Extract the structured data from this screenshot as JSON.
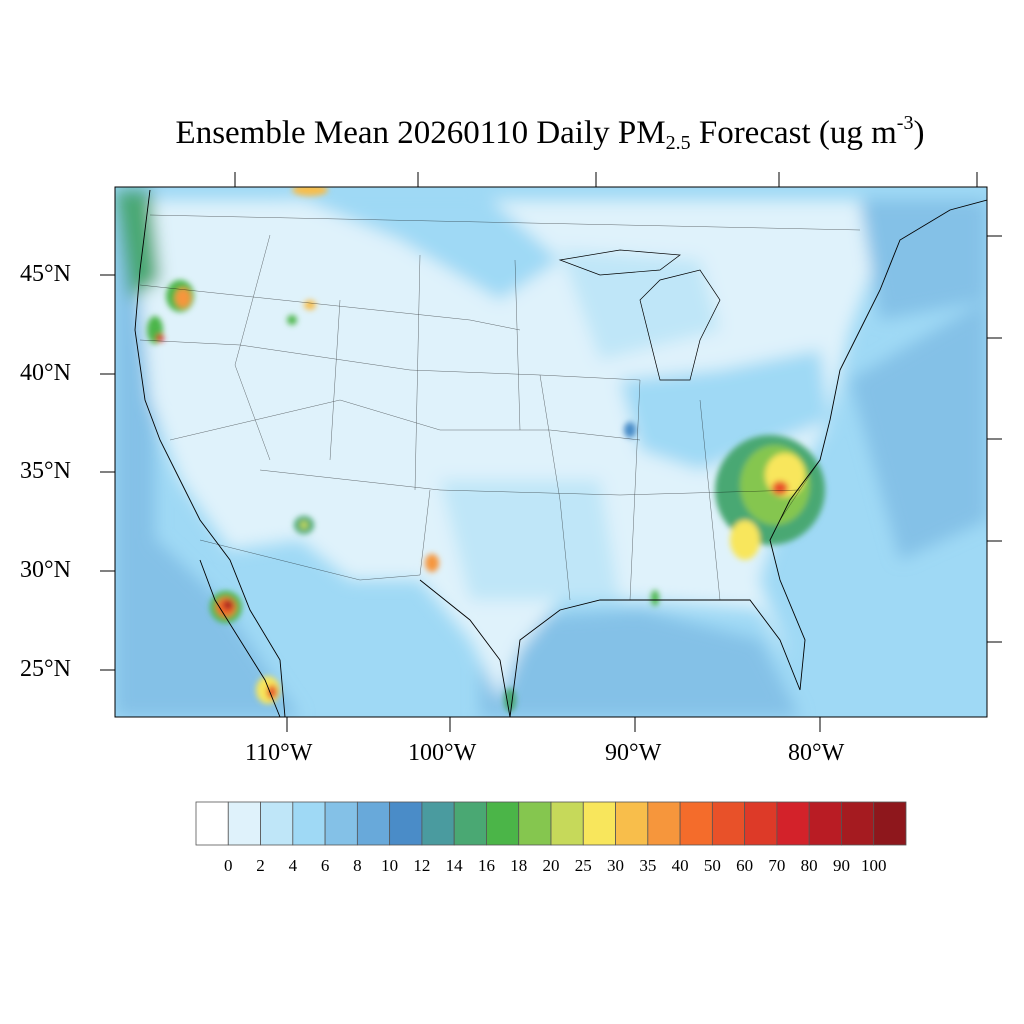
{
  "title": {
    "main": "Ensemble Mean 20260110 Daily PM",
    "sub": "2.5",
    "after": " Forecast (ug m",
    "sup": "-3",
    "end": ")"
  },
  "lat_labels": [
    "45°N",
    "40°N",
    "35°N",
    "30°N",
    "25°N"
  ],
  "lon_labels": [
    "110°W",
    "100°W",
    "90°W",
    "80°W"
  ],
  "colorbar": {
    "labels": [
      "0",
      "2",
      "4",
      "6",
      "8",
      "10",
      "12",
      "14",
      "16",
      "18",
      "20",
      "25",
      "30",
      "35",
      "40",
      "50",
      "60",
      "70",
      "80",
      "90",
      "100"
    ],
    "colors": [
      "#ffffff",
      "#dff2fb",
      "#bfe6f8",
      "#9fd9f5",
      "#84c1e7",
      "#68a9da",
      "#4a8cc8",
      "#4a9b9f",
      "#4aa873",
      "#4bb548",
      "#85c64f",
      "#c6d95a",
      "#f8e65c",
      "#f8be4b",
      "#f6963c",
      "#f46c2b",
      "#e85129",
      "#dd3a28",
      "#d3222a",
      "#b91c24",
      "#a51b20",
      "#8e171c"
    ]
  }
}
